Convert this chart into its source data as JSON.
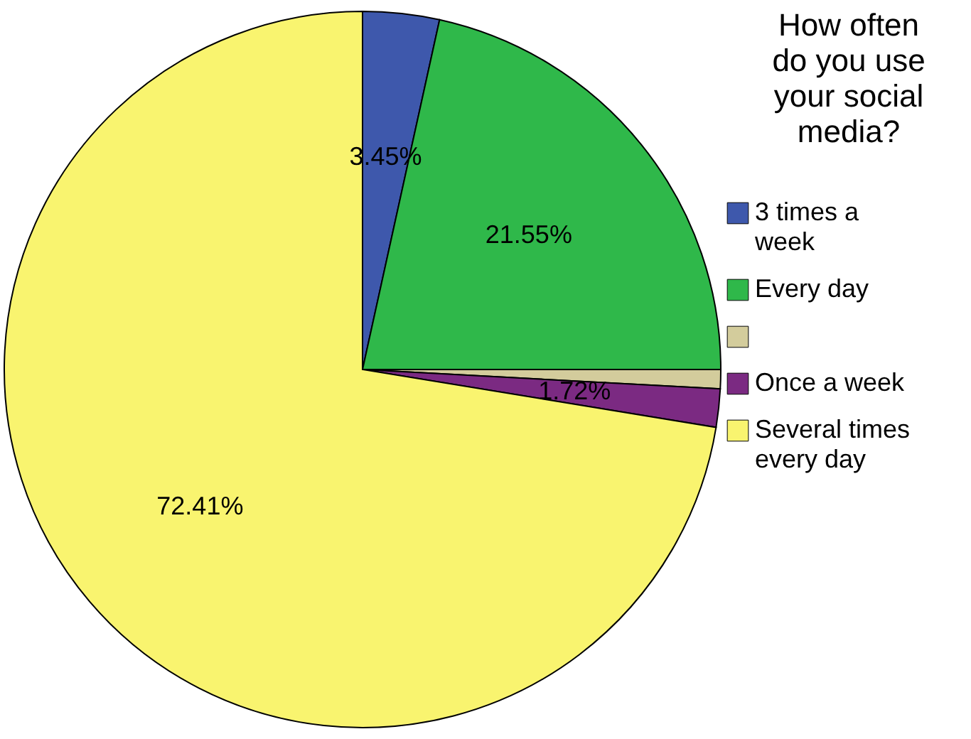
{
  "chart_data": {
    "type": "pie",
    "legend_title": "How often do you use your social media?",
    "categories": [
      "3 times a week",
      "Every day",
      null,
      "Once a week",
      "Several times every day"
    ],
    "values": [
      3.45,
      21.55,
      0.86,
      1.72,
      72.41
    ],
    "value_labels": [
      "3.45%",
      "21.55%",
      null,
      "1.72%",
      "72.41%"
    ],
    "colors": [
      "#3e58ac",
      "#2fb84a",
      "#d3cc9c",
      "#7b2a82",
      "#f9f46f"
    ],
    "legend": "right"
  }
}
